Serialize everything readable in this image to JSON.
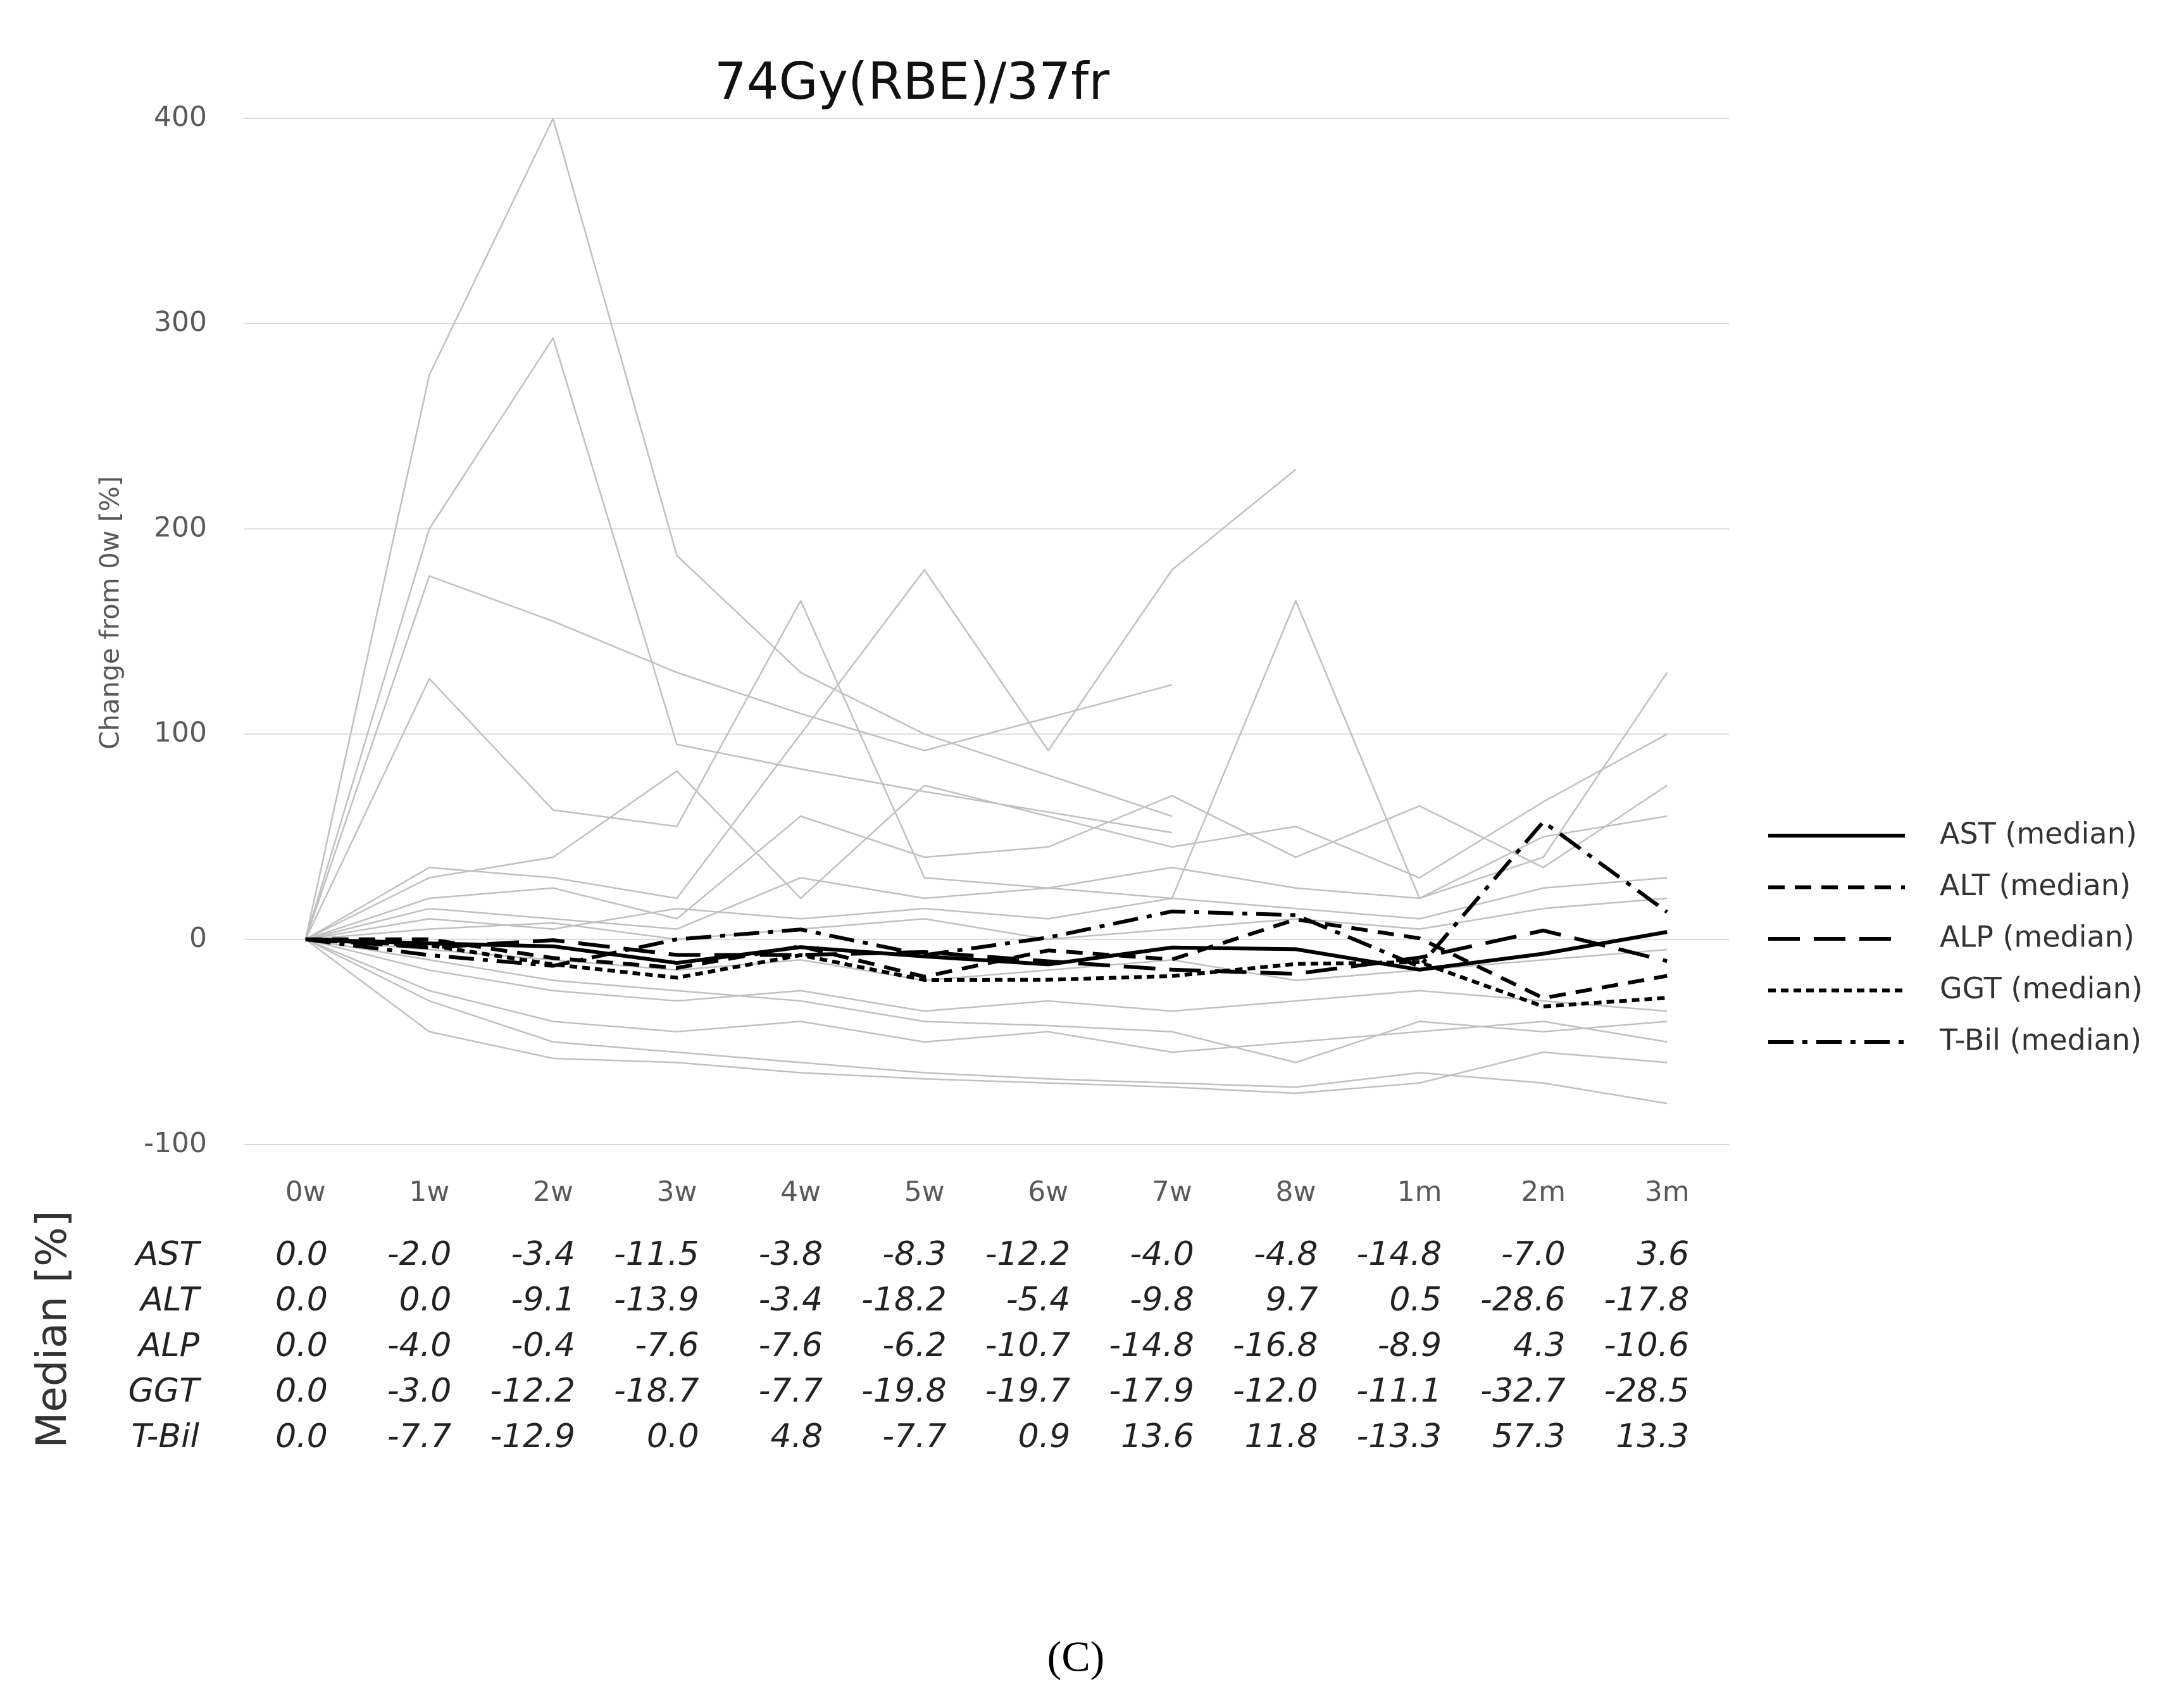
{
  "chart_data": {
    "type": "line",
    "title": "74Gy(RBE)/37fr",
    "y_label": "Change from 0w [%]",
    "table_title": "Median [%]",
    "panel_label": "(C)",
    "categories": [
      "0w",
      "1w",
      "2w",
      "3w",
      "4w",
      "5w",
      "6w",
      "7w",
      "8w",
      "1m",
      "2m",
      "3m"
    ],
    "ylim": [
      -100,
      400
    ],
    "yticks": [
      -100,
      0,
      100,
      200,
      300,
      400
    ],
    "grid": true,
    "legend": "right",
    "series": [
      {
        "color": "#c0c0c0",
        "values": [
          0,
          275,
          400,
          187,
          130,
          100,
          80,
          60,
          null,
          null,
          null,
          null
        ]
      },
      {
        "color": "#c0c0c0",
        "values": [
          0,
          200,
          293,
          95,
          83,
          72,
          62,
          52,
          null,
          null,
          null,
          null
        ]
      },
      {
        "color": "#c0c0c0",
        "values": [
          0,
          177,
          155,
          130,
          110,
          92,
          108,
          124,
          null,
          null,
          null,
          null
        ]
      },
      {
        "color": "#c0c0c0",
        "values": [
          0,
          127,
          63,
          55,
          165,
          30,
          25,
          20,
          165,
          20,
          40,
          130
        ]
      },
      {
        "color": "#c0c0c0",
        "values": [
          0,
          35,
          30,
          20,
          100,
          180,
          92,
          180,
          229,
          null,
          null,
          null
        ]
      },
      {
        "color": "#c0c0c0",
        "values": [
          0,
          30,
          40,
          82,
          20,
          75,
          60,
          45,
          55,
          30,
          67,
          100
        ]
      },
      {
        "color": "#c0c0c0",
        "values": [
          0,
          20,
          25,
          10,
          60,
          40,
          45,
          70,
          40,
          65,
          35,
          75
        ]
      },
      {
        "color": "#c0c0c0",
        "values": [
          0,
          15,
          10,
          5,
          30,
          20,
          25,
          35,
          25,
          20,
          50,
          60
        ]
      },
      {
        "color": "#c0c0c0",
        "values": [
          0,
          10,
          5,
          15,
          10,
          15,
          10,
          20,
          15,
          10,
          25,
          30
        ]
      },
      {
        "color": "#c0c0c0",
        "values": [
          0,
          5,
          8,
          0,
          5,
          10,
          0,
          5,
          10,
          5,
          15,
          20
        ]
      },
      {
        "color": "#c0c0c0",
        "values": [
          0,
          -5,
          -10,
          -15,
          -10,
          -20,
          -15,
          -10,
          -20,
          -15,
          -10,
          -5
        ]
      },
      {
        "color": "#c0c0c0",
        "values": [
          0,
          -15,
          -25,
          -30,
          -25,
          -35,
          -30,
          -35,
          -30,
          -25,
          -30,
          -35
        ]
      },
      {
        "color": "#c0c0c0",
        "values": [
          0,
          -25,
          -40,
          -45,
          -40,
          -50,
          -45,
          -55,
          -50,
          -45,
          -40,
          -50
        ]
      },
      {
        "color": "#c0c0c0",
        "values": [
          0,
          -45,
          -58,
          -60,
          -65,
          -68,
          -70,
          -72,
          -75,
          -70,
          -55,
          -60
        ]
      },
      {
        "color": "#c0c0c0",
        "values": [
          0,
          -30,
          -50,
          -55,
          -60,
          -65,
          -68,
          -70,
          -72,
          -65,
          -70,
          -80
        ]
      },
      {
        "color": "#c0c0c0",
        "values": [
          0,
          -10,
          -20,
          -25,
          -30,
          -40,
          -42,
          -45,
          -60,
          -40,
          -45,
          -40
        ]
      },
      {
        "name": "AST (median)",
        "row_label": "AST",
        "color": "#000000",
        "dash": "solid",
        "values": [
          0.0,
          -2.0,
          -3.4,
          -11.5,
          -3.8,
          -8.3,
          -12.2,
          -4.0,
          -4.8,
          -14.8,
          -7.0,
          3.6
        ],
        "value_labels": [
          "0.0",
          "-2.0",
          "-3.4",
          "-11.5",
          "-3.8",
          "-8.3",
          "-12.2",
          "-4.0",
          "-4.8",
          "-14.8",
          "-7.0",
          "3.6"
        ]
      },
      {
        "name": "ALT (median)",
        "row_label": "ALT",
        "color": "#000000",
        "dash": "dashed",
        "values": [
          0.0,
          0.0,
          -9.1,
          -13.9,
          -3.4,
          -18.2,
          -5.4,
          -9.8,
          9.7,
          0.5,
          -28.6,
          -17.8
        ],
        "value_labels": [
          "0.0",
          "0.0",
          "-9.1",
          "-13.9",
          "-3.4",
          "-18.2",
          "-5.4",
          "-9.8",
          "9.7",
          "0.5",
          "-28.6",
          "-17.8"
        ]
      },
      {
        "name": "ALP (median)",
        "row_label": "ALP",
        "color": "#000000",
        "dash": "long-dashed",
        "values": [
          0.0,
          -4.0,
          -0.4,
          -7.6,
          -7.6,
          -6.2,
          -10.7,
          -14.8,
          -16.8,
          -8.9,
          4.3,
          -10.6
        ],
        "value_labels": [
          "0.0",
          "-4.0",
          "-0.4",
          "-7.6",
          "-7.6",
          "-6.2",
          "-10.7",
          "-14.8",
          "-16.8",
          "-8.9",
          "4.3",
          "-10.6"
        ]
      },
      {
        "name": "GGT (median)",
        "row_label": "GGT",
        "color": "#000000",
        "dash": "dotted",
        "values": [
          0.0,
          -3.0,
          -12.2,
          -18.7,
          -7.7,
          -19.8,
          -19.7,
          -17.9,
          -12.0,
          -11.1,
          -32.7,
          -28.5
        ],
        "value_labels": [
          "0.0",
          "-3.0",
          "-12.2",
          "-18.7",
          "-7.7",
          "-19.8",
          "-19.7",
          "-17.9",
          "-12.0",
          "-11.1",
          "-32.7",
          "-28.5"
        ]
      },
      {
        "name": "T-Bil (median)",
        "row_label": "T-Bil",
        "color": "#000000",
        "dash": "dash-dot",
        "values": [
          0.0,
          -7.7,
          -12.9,
          0.0,
          4.8,
          -7.7,
          0.9,
          13.6,
          11.8,
          -13.3,
          57.3,
          13.3
        ],
        "value_labels": [
          "0.0",
          "-7.7",
          "-12.9",
          "0.0",
          "4.8",
          "-7.7",
          "0.9",
          "13.6",
          "11.8",
          "-13.3",
          "57.3",
          "13.3"
        ]
      }
    ]
  }
}
